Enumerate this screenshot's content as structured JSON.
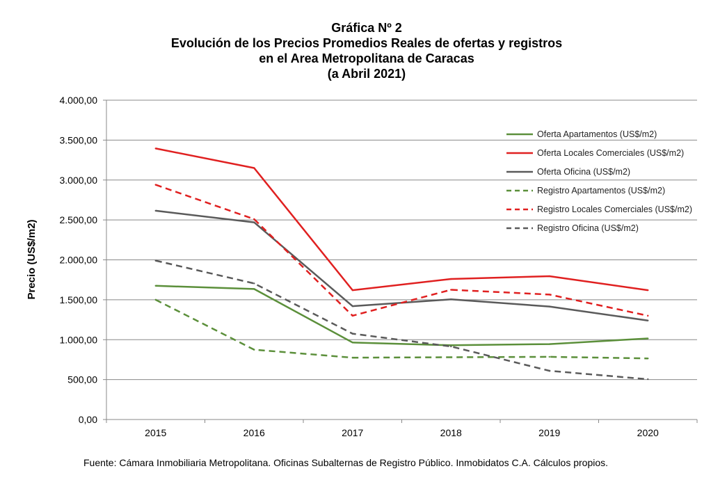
{
  "chart_data": {
    "type": "line",
    "title": [
      "Gráfica Nº 2",
      "Evolución de los Precios Promedios Reales de ofertas y registros",
      "en el Area Metropolitana de Caracas",
      "(a Abril 2021)"
    ],
    "xlabel": "",
    "ylabel": "Precio (US$/m2)",
    "x": [
      "2015",
      "2016",
      "2017",
      "2018",
      "2019",
      "2020"
    ],
    "ylim": [
      0,
      4000
    ],
    "yticks": [
      "0,00",
      "500,00",
      "1.000,00",
      "1.500,00",
      "2.000,00",
      "2.500,00",
      "3.000,00",
      "3.500,00",
      "4.000,00"
    ],
    "grid": "horizontal",
    "legend_position": "top-right",
    "series": [
      {
        "name": "Oferta Apartamentos (US$/m2)",
        "color": "#5b8f3a",
        "dash": "solid",
        "values": [
          1675,
          1635,
          965,
          930,
          945,
          1015
        ]
      },
      {
        "name": "Oferta Locales Comerciales (US$/m2)",
        "color": "#e02020",
        "dash": "solid",
        "values": [
          3395,
          3150,
          1620,
          1760,
          1795,
          1620
        ]
      },
      {
        "name": "Oferta Oficina (US$/m2)",
        "color": "#5a5a5a",
        "dash": "solid",
        "values": [
          2615,
          2470,
          1420,
          1505,
          1415,
          1240
        ]
      },
      {
        "name": "Registro Apartamentos (US$/m2)",
        "color": "#5b8f3a",
        "dash": "dashed",
        "values": [
          1500,
          875,
          775,
          780,
          785,
          765
        ]
      },
      {
        "name": "Registro Locales Comerciales (US$/m2)",
        "color": "#e02020",
        "dash": "dashed",
        "values": [
          2940,
          2510,
          1300,
          1625,
          1565,
          1300
        ]
      },
      {
        "name": "Registro Oficina (US$/m2)",
        "color": "#5a5a5a",
        "dash": "dashed",
        "values": [
          1990,
          1705,
          1075,
          915,
          610,
          505
        ]
      }
    ],
    "source": "Fuente: Cámara Inmobiliaria Metropolitana. Oficinas Subalternas de Registro Público. Inmobidatos C.A. Cálculos propios."
  }
}
